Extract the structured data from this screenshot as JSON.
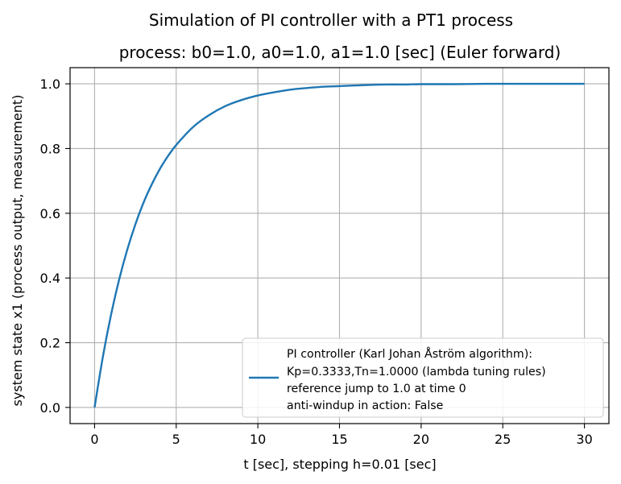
{
  "chart_data": {
    "type": "line",
    "title": "Simulation of PI controller with a PT1 process",
    "subtitle": "process: b0=1.0, a0=1.0, a1=1.0 [sec] (Euler forward)",
    "xlabel": "t [sec], stepping h=0.01 [sec]",
    "ylabel": "system state x1 (process output, measurement)",
    "xlim": [
      -1.5,
      31.5
    ],
    "ylim": [
      -0.05,
      1.05
    ],
    "xticks": [
      0,
      5,
      10,
      15,
      20,
      25,
      30
    ],
    "yticks": [
      0.0,
      0.2,
      0.4,
      0.6,
      0.8,
      1.0
    ],
    "xtick_labels": [
      "0",
      "5",
      "10",
      "15",
      "20",
      "25",
      "30"
    ],
    "ytick_labels": [
      "0.0",
      "0.2",
      "0.4",
      "0.6",
      "0.8",
      "1.0"
    ],
    "grid": true,
    "legend_position": "lower-right",
    "series": [
      {
        "name": "PI controller (Karl Johan Åström algorithm):\nKp=0.3333,Tn=1.0000 (lambda tuning rules)\nreference jump to 1.0 at time 0\nanti-windup in action: False",
        "legend_lines": [
          "PI controller (Karl Johan Åström algorithm):",
          "Kp=0.3333,Tn=1.0000 (lambda tuning rules)",
          "reference jump to 1.0 at time 0",
          "anti-windup in action: False"
        ],
        "color": "#1f77b4",
        "x": [
          0,
          0.5,
          1,
          1.5,
          2,
          2.5,
          3,
          3.5,
          4,
          4.5,
          5,
          6,
          7,
          8,
          9,
          10,
          11,
          12,
          13,
          14,
          15,
          16,
          17,
          18,
          19,
          20,
          22,
          24,
          26,
          28,
          30
        ],
        "y": [
          0.0,
          0.154,
          0.284,
          0.394,
          0.487,
          0.566,
          0.633,
          0.689,
          0.737,
          0.777,
          0.811,
          0.865,
          0.903,
          0.931,
          0.95,
          0.964,
          0.974,
          0.982,
          0.987,
          0.991,
          0.993,
          0.995,
          0.997,
          0.998,
          0.998,
          0.999,
          0.999,
          1.0,
          1.0,
          1.0,
          1.0
        ]
      }
    ]
  }
}
